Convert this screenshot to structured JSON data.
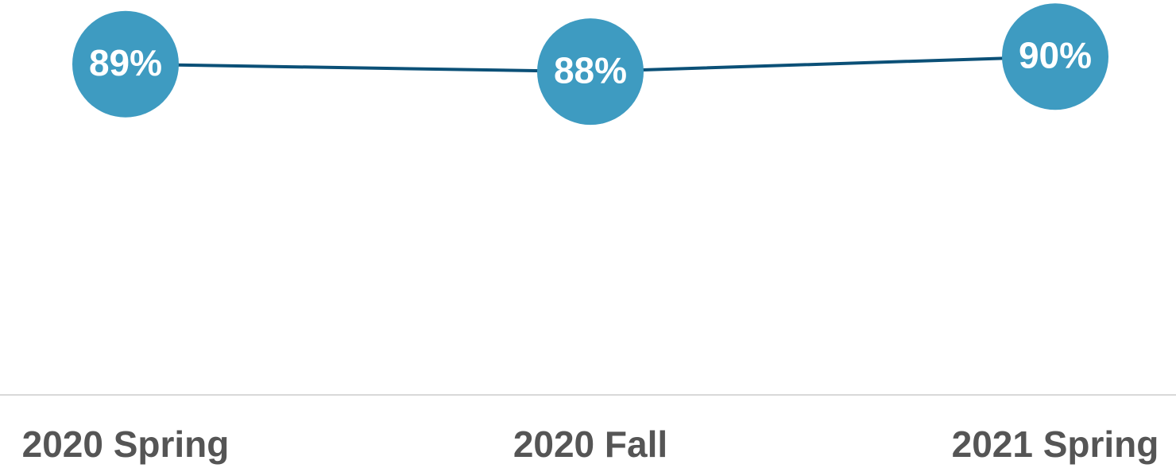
{
  "chart_data": {
    "type": "line",
    "categories": [
      "2020 Spring",
      "2020 Fall",
      "2021 Spring"
    ],
    "series": [
      {
        "name": null,
        "color": "#0b5077",
        "marker_color": "#3e9bc1",
        "values": [
          89,
          88,
          90
        ],
        "value_labels": [
          "89%",
          "88%",
          "90%"
        ]
      }
    ],
    "ylim": [
      45,
      97
    ]
  }
}
